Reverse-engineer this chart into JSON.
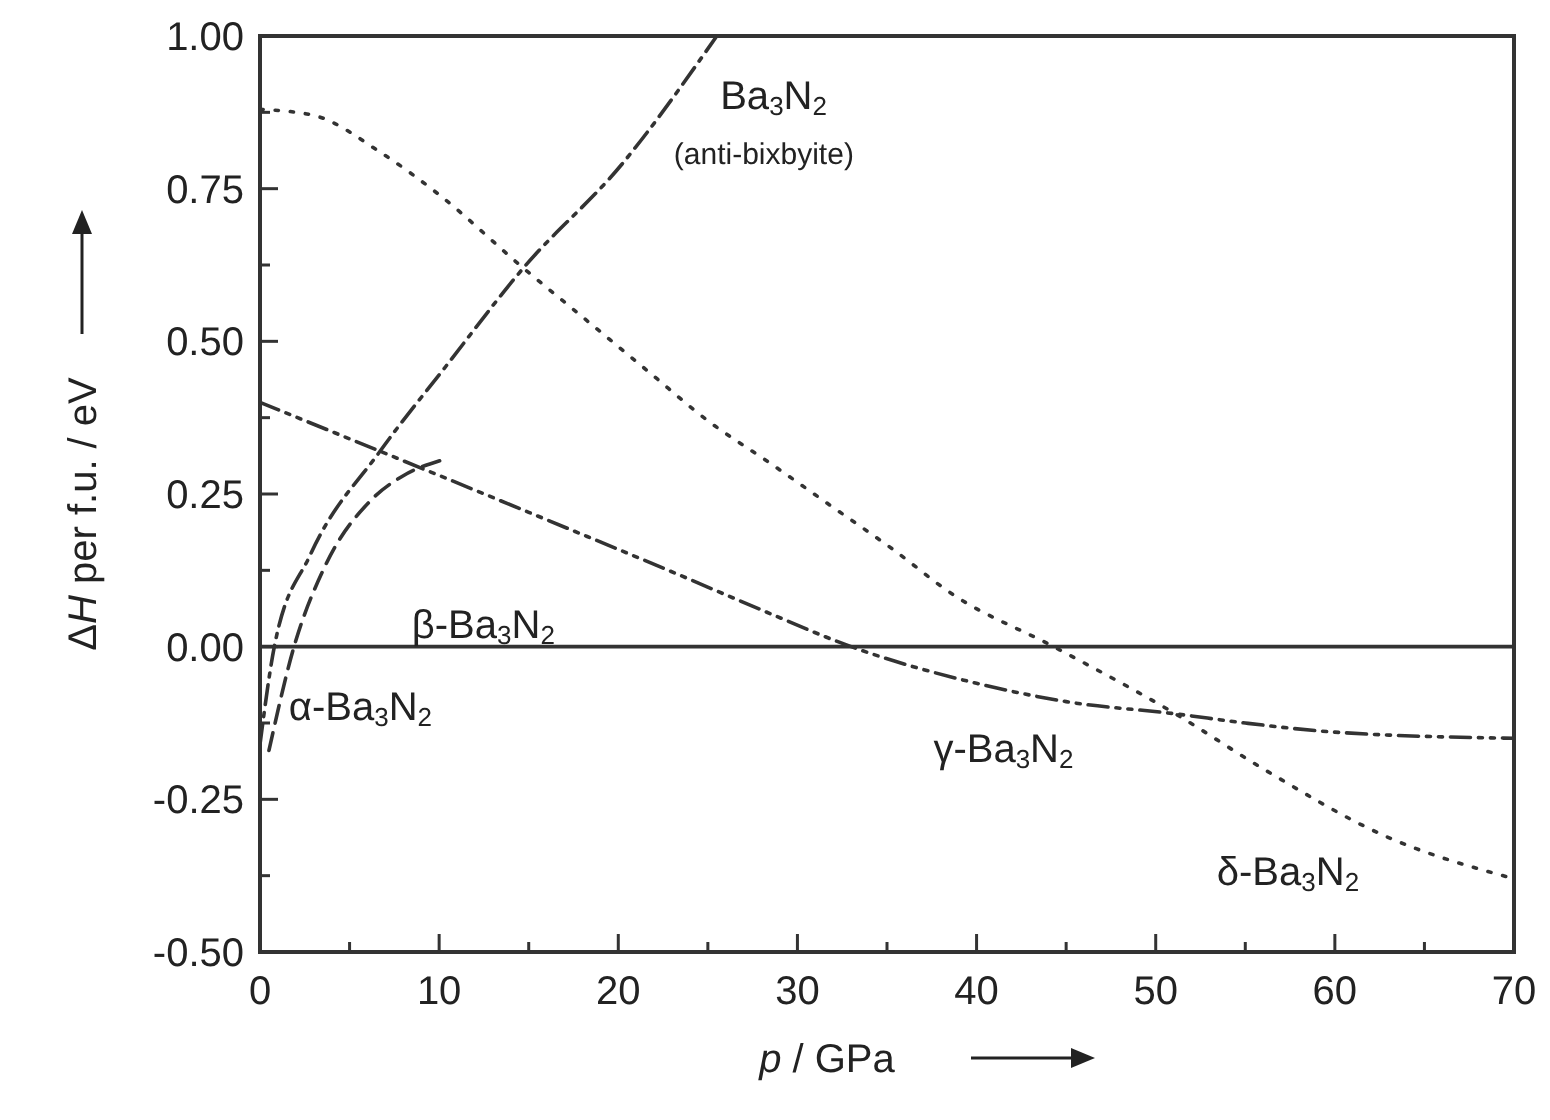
{
  "chart_data": {
    "type": "line",
    "xlabel": "p / GPa",
    "ylabel": "ΔH per f.u. / eV",
    "xlim": [
      0,
      70
    ],
    "xticks": [
      0,
      {
        "value": 5,
        "label": null
      },
      10,
      {
        "value": 15,
        "label": null
      },
      20,
      {
        "value": 25,
        "label": null
      },
      30,
      {
        "value": 35,
        "label": null
      },
      40,
      {
        "value": 45,
        "label": null
      },
      50,
      {
        "value": 55,
        "label": null
      },
      60,
      {
        "value": 65,
        "label": null
      },
      70
    ],
    "ylim": [
      -0.5,
      1.0
    ],
    "yticks": [
      {
        "value": -0.5,
        "label": "-0.50"
      },
      {
        "value": -0.375,
        "label": null
      },
      {
        "value": -0.25,
        "label": "-0.25"
      },
      {
        "value": -0.125,
        "label": null
      },
      {
        "value": 0,
        "label": "0.00"
      },
      {
        "value": 0.125,
        "label": null
      },
      {
        "value": 0.25,
        "label": "0.25"
      },
      {
        "value": 0.375,
        "label": null
      },
      {
        "value": 0.5,
        "label": "0.50"
      },
      {
        "value": 0.625,
        "label": null
      },
      {
        "value": 0.75,
        "label": "0.75"
      },
      {
        "value": 0.875,
        "label": null
      },
      {
        "value": 1.0,
        "label": "1.00"
      }
    ],
    "grid": false,
    "marker": "none",
    "series": [
      {
        "color": "#333333",
        "line_style": "solid",
        "x": [
          0,
          70
        ],
        "values": [
          0,
          0
        ]
      },
      {
        "color": "#333333",
        "line_style": "dashed",
        "x": [
          0.5,
          1.9,
          3.6,
          6.2,
          8,
          10.1
        ],
        "values": [
          -0.17,
          0,
          0.13,
          0.24,
          0.28,
          0.305
        ]
      },
      {
        "color": "#333333",
        "line_style": "dashdot",
        "x": [
          0,
          0.8,
          2.8,
          6.7,
          10.4,
          14.7,
          20.2,
          25.5
        ],
        "values": [
          -0.16,
          0,
          0.15,
          0.32,
          0.46,
          0.62,
          0.79,
          1.0
        ]
      },
      {
        "color": "#333333",
        "line_style": "dashdotdot",
        "x": [
          0,
          6.7,
          15,
          23.2,
          28,
          33,
          40,
          45,
          51.1,
          55,
          60,
          70
        ],
        "values": [
          0.4,
          0.32,
          0.22,
          0.12,
          0.06,
          0,
          -0.06,
          -0.09,
          -0.11,
          -0.125,
          -0.14,
          -0.15
        ]
      },
      {
        "color": "#333333",
        "line_style": "dotted",
        "x": [
          0,
          3,
          6.7,
          10,
          14.7,
          18,
          21.7,
          25,
          28.5,
          31.9,
          35.3,
          38.7,
          44.3,
          51.1,
          56,
          62.8,
          70
        ],
        "values": [
          0.88,
          0.87,
          0.81,
          0.74,
          0.62,
          0.54,
          0.45,
          0.37,
          0.3,
          0.23,
          0.16,
          0.085,
          0,
          -0.11,
          -0.2,
          -0.31,
          -0.38
        ]
      }
    ],
    "annotations": [
      "Ba$_{3}$N$_{2}$",
      "(anti-bixbyite)",
      "β-Ba$_{3}$N$_{2}$",
      "α-Ba$_{3}$N$_{2}$",
      "γ-Ba$_{3}$N$_{2}$",
      "δ-Ba$_{3}$N$_{2}$"
    ]
  }
}
